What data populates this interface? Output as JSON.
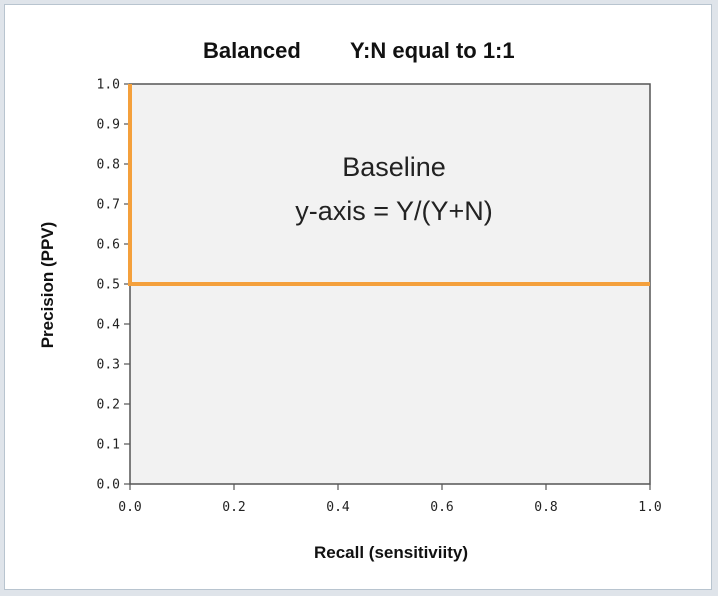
{
  "chart_data": {
    "type": "line",
    "title_left": "Balanced",
    "title_right": "Y:N equal to 1:1",
    "xlabel": "Recall (sensitiviity)",
    "ylabel": "Precision (PPV)",
    "xlim": [
      0.0,
      1.0
    ],
    "ylim": [
      0.0,
      1.0
    ],
    "x_ticks": [
      "0.0",
      "0.2",
      "0.4",
      "0.6",
      "0.8",
      "1.0"
    ],
    "y_ticks": [
      "0.0",
      "0.1",
      "0.2",
      "0.3",
      "0.4",
      "0.5",
      "0.6",
      "0.7",
      "0.8",
      "0.9",
      "1.0"
    ],
    "grid": false,
    "series": [
      {
        "color": "#f4a03c",
        "x": [
          0.0,
          0.0,
          1.0
        ],
        "y": [
          1.0,
          0.5,
          0.5
        ]
      }
    ],
    "annotation": {
      "lines": [
        "Baseline",
        "y-axis = Y/(Y+N)"
      ]
    },
    "plot_background": "#f2f2f2"
  }
}
